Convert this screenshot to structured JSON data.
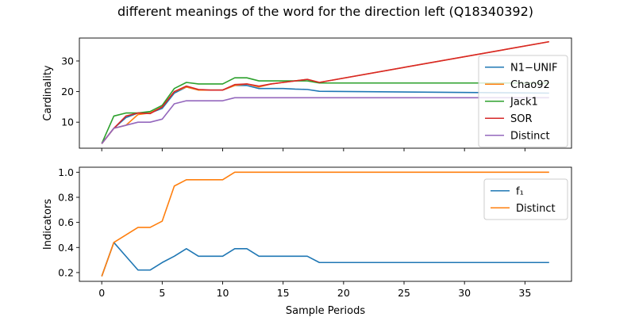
{
  "title": "different meanings of the word for the direction left (Q18340392)",
  "chart_data": [
    {
      "type": "line",
      "ylabel": "Cardinality",
      "xlabel": "",
      "xlim": [
        -1.85,
        38.85
      ],
      "ylim": [
        1.5,
        37.5
      ],
      "xticks": [
        0,
        5,
        10,
        15,
        20,
        25,
        30,
        35
      ],
      "yticks": [
        10,
        20,
        30
      ],
      "show_xtick_labels": false,
      "grid": false,
      "legend_position": "right",
      "series": [
        {
          "name": "N1−UNIF",
          "color": "#1f77b4",
          "x": [
            0,
            1,
            2,
            3,
            4,
            5,
            6,
            7,
            8,
            9,
            10,
            11,
            12,
            13,
            14,
            15,
            16,
            17,
            18,
            37
          ],
          "y": [
            3,
            8,
            11.5,
            13,
            13,
            14.5,
            19.5,
            21.5,
            20.5,
            20.5,
            20.5,
            22,
            22,
            21,
            21,
            21,
            20.8,
            20.7,
            20.1,
            19.5
          ]
        },
        {
          "name": "Chao92",
          "color": "#ff7f0e",
          "x": [
            0,
            1,
            2,
            3,
            4,
            5,
            6,
            7,
            8,
            9,
            10,
            11,
            12,
            13,
            14,
            15,
            16,
            17,
            18,
            37
          ],
          "y": [
            3,
            8,
            9,
            12.5,
            13,
            15,
            20,
            21.5,
            20.5,
            20.5,
            20.5,
            22,
            22.5,
            21.5,
            22.5,
            23,
            23.5,
            24,
            23,
            36.3
          ]
        },
        {
          "name": "Jack1",
          "color": "#2ca02c",
          "x": [
            0,
            1,
            2,
            3,
            4,
            5,
            6,
            7,
            8,
            9,
            10,
            11,
            12,
            13,
            14,
            15,
            16,
            17,
            18,
            37
          ],
          "y": [
            3,
            12,
            13,
            13,
            13.5,
            15.5,
            21,
            23,
            22.5,
            22.5,
            22.5,
            24.5,
            24.5,
            23.5,
            23.5,
            23.5,
            23.5,
            23.5,
            22.8,
            22.8
          ]
        },
        {
          "name": "SOR",
          "color": "#d62728",
          "x": [
            0,
            1,
            2,
            3,
            4,
            5,
            6,
            7,
            8,
            9,
            10,
            11,
            12,
            13,
            14,
            15,
            16,
            17,
            18,
            37
          ],
          "y": [
            3,
            8,
            12,
            13,
            12.8,
            15,
            20,
            21.8,
            20.7,
            20.5,
            20.5,
            22.3,
            22.5,
            21.8,
            22.5,
            23,
            23.5,
            24,
            23,
            36.3
          ]
        },
        {
          "name": "Distinct",
          "color": "#9467bd",
          "x": [
            0,
            1,
            2,
            3,
            4,
            5,
            6,
            7,
            8,
            9,
            10,
            11,
            12,
            13,
            14,
            15,
            16,
            17,
            18,
            37
          ],
          "y": [
            3,
            8,
            9,
            10,
            10,
            11,
            16,
            17,
            17,
            17,
            17,
            18,
            18,
            18,
            18,
            18,
            18,
            18,
            18,
            18
          ]
        }
      ]
    },
    {
      "type": "line",
      "ylabel": "Indicators",
      "xlabel": "Sample Periods",
      "xlim": [
        -1.85,
        38.85
      ],
      "ylim": [
        0.13,
        1.04
      ],
      "xticks": [
        0,
        5,
        10,
        15,
        20,
        25,
        30,
        35
      ],
      "yticks": [
        0.2,
        0.4,
        0.6,
        0.8,
        1.0
      ],
      "ytick_labels": [
        "0.2",
        "0.4",
        "0.6",
        "0.8",
        "1.0"
      ],
      "show_xtick_labels": true,
      "grid": false,
      "legend_position": "top-right",
      "series": [
        {
          "name": "f₁",
          "color": "#1f77b4",
          "x": [
            0,
            1,
            2,
            3,
            4,
            5,
            6,
            7,
            8,
            9,
            10,
            11,
            12,
            13,
            14,
            15,
            16,
            17,
            18,
            37
          ],
          "y": [
            0.17,
            0.44,
            0.33,
            0.22,
            0.22,
            0.28,
            0.33,
            0.39,
            0.33,
            0.33,
            0.33,
            0.39,
            0.39,
            0.33,
            0.33,
            0.33,
            0.33,
            0.33,
            0.28,
            0.28
          ]
        },
        {
          "name": "Distinct",
          "color": "#ff7f0e",
          "x": [
            0,
            1,
            2,
            3,
            4,
            5,
            6,
            7,
            8,
            9,
            10,
            11,
            12,
            13,
            14,
            15,
            16,
            17,
            18,
            37
          ],
          "y": [
            0.17,
            0.44,
            0.5,
            0.56,
            0.56,
            0.61,
            0.89,
            0.94,
            0.94,
            0.94,
            0.94,
            1.0,
            1.0,
            1.0,
            1.0,
            1.0,
            1.0,
            1.0,
            1.0,
            1.0
          ]
        }
      ]
    }
  ]
}
